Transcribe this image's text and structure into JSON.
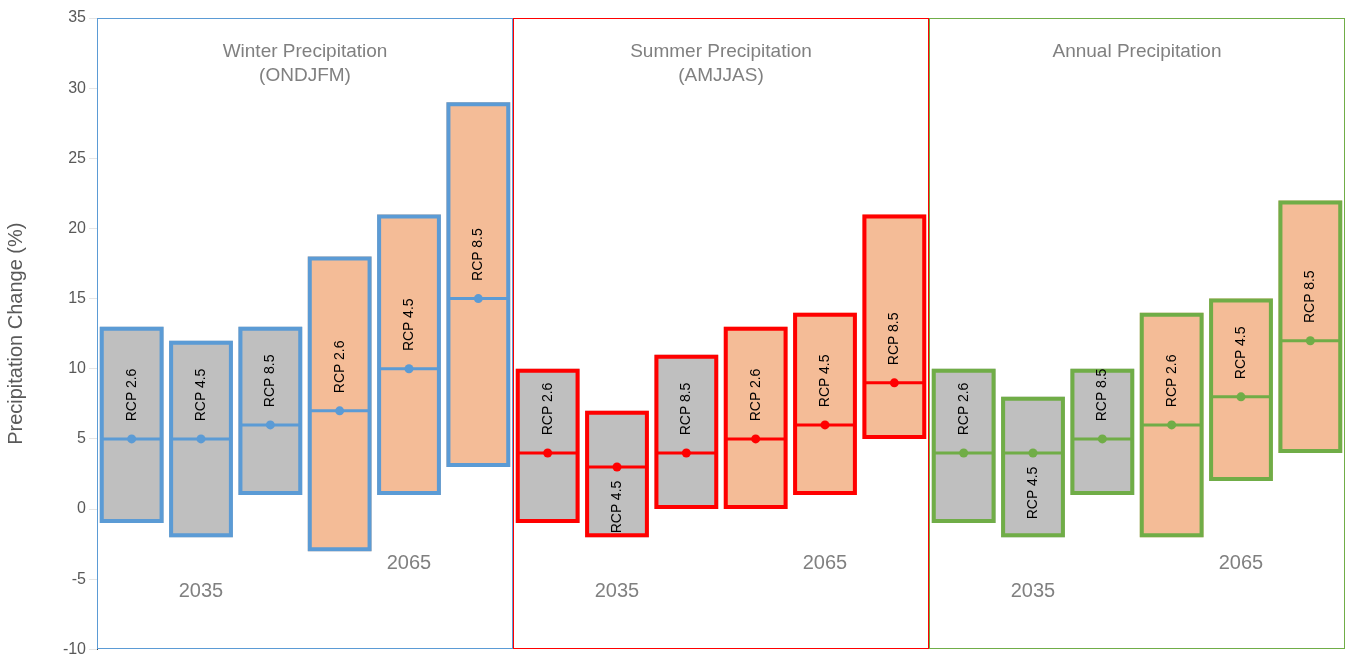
{
  "chart_data": {
    "type": "box",
    "ylabel": "Precipitation Change (%)",
    "categories": [
      "RCP 2.6",
      "RCP 4.5",
      "RCP 8.5",
      "RCP 2.6",
      "RCP 4.5",
      "RCP 8.5",
      "RCP 2.6",
      "RCP 4.5",
      "RCP 8.5",
      "RCP 2.6",
      "RCP 4.5",
      "RCP 8.5",
      "RCP 2.6",
      "RCP 4.5",
      "RCP 8.5",
      "RCP 2.6",
      "RCP 4.5",
      "RCP 8.5"
    ],
    "ylim": [
      -10,
      35
    ],
    "yticks": [
      -10,
      -5,
      0,
      5,
      10,
      15,
      20,
      25,
      30,
      35
    ],
    "tick_labels": "y",
    "grid": false,
    "legend": false,
    "marker": "circle",
    "annotations": [
      "Winter Precipitation (ONDJFM)",
      "2035",
      "2065",
      "Summer Precipitation (AMJJAS)",
      "2035",
      "2065",
      "Annual Precipitation",
      "2035",
      "2065"
    ],
    "series": [
      {
        "color": "#5b9bd5",
        "colors": [
          "#bfbfbf",
          "#bfbfbf",
          "#bfbfbf",
          "#f4bc97",
          "#f4bc97",
          "#f4bc97",
          null,
          null,
          null,
          null,
          null,
          null,
          null,
          null,
          null,
          null,
          null,
          null
        ],
        "boxes": [
          {
            "low": -1,
            "q1": -1,
            "median": 5,
            "q3": 13,
            "high": 13,
            "mean": 5
          },
          {
            "low": -2,
            "q1": -2,
            "median": 5,
            "q3": 12,
            "high": 12,
            "mean": 5
          },
          {
            "low": 1,
            "q1": 1,
            "median": 6,
            "q3": 13,
            "high": 13,
            "mean": 6
          },
          {
            "low": -3,
            "q1": -3,
            "median": 7,
            "q3": 18,
            "high": 18,
            "mean": 7
          },
          {
            "low": 1,
            "q1": 1,
            "median": 10,
            "q3": 21,
            "high": 21,
            "mean": 10
          },
          {
            "low": 3,
            "q1": 3,
            "median": 15,
            "q3": 29,
            "high": 29,
            "mean": 15
          },
          null,
          null,
          null,
          null,
          null,
          null,
          null,
          null,
          null,
          null,
          null,
          null
        ]
      },
      {
        "color": "#ff0000",
        "colors": [
          null,
          null,
          null,
          null,
          null,
          null,
          "#bfbfbf",
          "#bfbfbf",
          "#bfbfbf",
          "#f4bc97",
          "#f4bc97",
          "#f4bc97",
          null,
          null,
          null,
          null,
          null,
          null
        ],
        "boxes": [
          null,
          null,
          null,
          null,
          null,
          null,
          {
            "low": -1,
            "q1": -1,
            "median": 4,
            "q3": 10,
            "high": 10,
            "mean": 4
          },
          {
            "low": -2,
            "q1": -2,
            "median": 3,
            "q3": 7,
            "high": 7,
            "mean": 3
          },
          {
            "low": 0,
            "q1": 0,
            "median": 4,
            "q3": 11,
            "high": 11,
            "mean": 4
          },
          {
            "low": 0,
            "q1": 0,
            "median": 5,
            "q3": 13,
            "high": 13,
            "mean": 5
          },
          {
            "low": 1,
            "q1": 1,
            "median": 6,
            "q3": 14,
            "high": 14,
            "mean": 6
          },
          {
            "low": 5,
            "q1": 5,
            "median": 9,
            "q3": 21,
            "high": 21,
            "mean": 9
          },
          null,
          null,
          null,
          null,
          null,
          null
        ]
      },
      {
        "color": "#70ad47",
        "colors": [
          null,
          null,
          null,
          null,
          null,
          null,
          null,
          null,
          null,
          null,
          null,
          null,
          "#bfbfbf",
          "#bfbfbf",
          "#bfbfbf",
          "#f4bc97",
          "#f4bc97",
          "#f4bc97"
        ],
        "boxes": [
          null,
          null,
          null,
          null,
          null,
          null,
          null,
          null,
          null,
          null,
          null,
          null,
          {
            "low": -1,
            "q1": -1,
            "median": 4,
            "q3": 10,
            "high": 10,
            "mean": 4
          },
          {
            "low": -2,
            "q1": -2,
            "median": 4,
            "q3": 8,
            "high": 8,
            "mean": 4
          },
          {
            "low": 1,
            "q1": 1,
            "median": 5,
            "q3": 10,
            "high": 10,
            "mean": 5
          },
          {
            "low": -2,
            "q1": -2,
            "median": 6,
            "q3": 14,
            "high": 14,
            "mean": 6
          },
          {
            "low": 2,
            "q1": 2,
            "median": 8,
            "q3": 15,
            "high": 15,
            "mean": 8
          },
          {
            "low": 4,
            "q1": 4,
            "median": 12,
            "q3": 22,
            "high": 22,
            "mean": 12
          }
        ]
      }
    ]
  }
}
